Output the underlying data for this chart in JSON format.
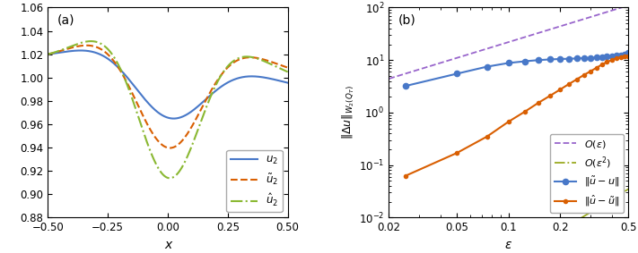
{
  "panel_a": {
    "xlim": [
      -0.5,
      0.5
    ],
    "ylim": [
      0.88,
      1.06
    ],
    "xlabel": "x",
    "yticks": [
      0.88,
      0.9,
      0.92,
      0.94,
      0.96,
      0.98,
      1.0,
      1.02,
      1.04,
      1.06
    ],
    "xticks": [
      -0.5,
      -0.25,
      0,
      0.25,
      0.5
    ],
    "label_a": "(a)",
    "u2_color": "#4878c8",
    "u2_tilde_color": "#d95f02",
    "u2_hat_color": "#8ab832",
    "u2_label": "$u_2$",
    "u2_tilde_label": "$\\tilde{u}_2$",
    "u2_hat_label": "$\\hat{u}_2$"
  },
  "panel_b": {
    "xlim": [
      0.02,
      0.5
    ],
    "ylim": [
      0.01,
      100
    ],
    "xlabel": "$\\epsilon$",
    "ylabel": "$\\|\\Delta u\\|_{W_2(Q_T)}$",
    "label_b": "(b)",
    "epsilon_values": [
      0.025,
      0.05,
      0.075,
      0.1,
      0.125,
      0.15,
      0.175,
      0.2,
      0.225,
      0.25,
      0.275,
      0.3,
      0.325,
      0.35,
      0.375,
      0.4,
      0.425,
      0.45,
      0.475,
      0.5
    ],
    "blue_values": [
      3.2,
      5.5,
      7.5,
      8.8,
      9.5,
      10.0,
      10.3,
      10.5,
      10.6,
      10.75,
      10.9,
      11.05,
      11.2,
      11.4,
      11.6,
      11.85,
      12.1,
      12.5,
      13.0,
      14.0
    ],
    "orange_values": [
      0.062,
      0.17,
      0.35,
      0.67,
      1.05,
      1.55,
      2.1,
      2.75,
      3.5,
      4.3,
      5.2,
      6.1,
      7.1,
      8.2,
      9.2,
      10.0,
      10.8,
      11.3,
      11.7,
      12.0
    ],
    "blue_color": "#4878c8",
    "orange_color": "#d95f02",
    "purple_color": "#9966cc",
    "olive_color": "#9aaa20",
    "c_purple": 220,
    "c_olive": 0.14,
    "legend_labels": [
      "$\\|\\tilde{u} - u\\|$",
      "$\\|\\hat{u} - \\tilde{u}\\|$",
      "$O(\\epsilon)$",
      "$O(\\epsilon^2)$"
    ],
    "xticks": [
      0.02,
      0.05,
      0.1,
      0.2,
      0.5
    ],
    "xticklabels": [
      "0.02",
      "0.05",
      "0.1",
      "0.2",
      "0.5"
    ]
  }
}
